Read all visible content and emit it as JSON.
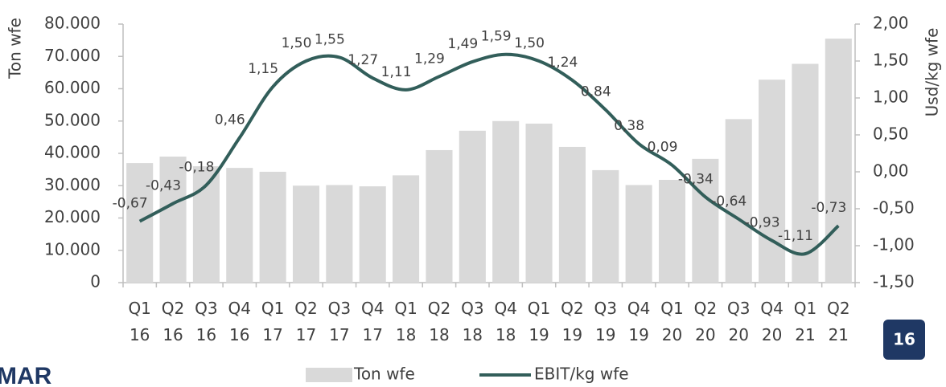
{
  "chart_data": {
    "type": "bar_line",
    "categories": [
      "Q1 16",
      "Q2 16",
      "Q3 16",
      "Q4 16",
      "Q1 17",
      "Q2 17",
      "Q3 17",
      "Q4 17",
      "Q1 18",
      "Q2 18",
      "Q3 18",
      "Q4 18",
      "Q1 19",
      "Q2 19",
      "Q3 19",
      "Q4 19",
      "Q1 20",
      "Q2 20",
      "Q3 20",
      "Q4 20",
      "Q1 21",
      "Q2 21"
    ],
    "series": [
      {
        "name": "Ton wfe",
        "color": "#d9d9d9",
        "axis": "y",
        "values": [
          37000,
          39000,
          36000,
          35500,
          34300,
          30000,
          30200,
          29800,
          33200,
          41000,
          47000,
          50000,
          49200,
          42000,
          34800,
          30200,
          31800,
          38300,
          50600,
          62800,
          67700,
          75500
        ]
      },
      {
        "name": "EBIT/kg wfe",
        "color": "#325e5a",
        "axis": "y2",
        "values": [
          -0.67,
          -0.43,
          -0.18,
          0.46,
          1.15,
          1.5,
          1.55,
          1.27,
          1.11,
          1.29,
          1.49,
          1.59,
          1.5,
          1.24,
          0.84,
          0.38,
          0.09,
          -0.34,
          -0.64,
          -0.93,
          -1.11,
          -0.73
        ],
        "value_labels": [
          "-0,67",
          "-0,43",
          "-0,18",
          "0,46",
          "1,15",
          "1,50",
          "1,55",
          "1,27",
          "1,11",
          "1,29",
          "1,49",
          "1,59",
          "1,50",
          "1,24",
          "0,84",
          "0,38",
          "0,09",
          "-0,34",
          "-0,64",
          "-0,93",
          "-1,11",
          "-0,73"
        ]
      }
    ],
    "ylabel": "Ton wfe",
    "y2label": "Usd/kg wfe",
    "ylim": [
      0,
      80000
    ],
    "yticks": [
      {
        "value": 0,
        "label": "0"
      },
      {
        "value": 10000,
        "label": "10.000"
      },
      {
        "value": 20000,
        "label": "20.000"
      },
      {
        "value": 30000,
        "label": "30.000"
      },
      {
        "value": 40000,
        "label": "40.000"
      },
      {
        "value": 50000,
        "label": "50.000"
      },
      {
        "value": 60000,
        "label": "60.000"
      },
      {
        "value": 70000,
        "label": "70.000"
      },
      {
        "value": 80000,
        "label": "80.000"
      }
    ],
    "y2lim": [
      -1.5,
      2.0
    ],
    "y2ticks": [
      {
        "value": -1.5,
        "label": "-1,50"
      },
      {
        "value": -1.0,
        "label": "-1,00"
      },
      {
        "value": -0.5,
        "label": "-0,50"
      },
      {
        "value": 0,
        "label": "0,00"
      },
      {
        "value": 0.5,
        "label": "0,50"
      },
      {
        "value": 1.0,
        "label": "1,00"
      },
      {
        "value": 1.5,
        "label": "1,50"
      },
      {
        "value": 2.0,
        "label": "2,00"
      }
    ],
    "legend": "bottom",
    "grid": false
  },
  "page_number": "16",
  "logo": "MAR"
}
